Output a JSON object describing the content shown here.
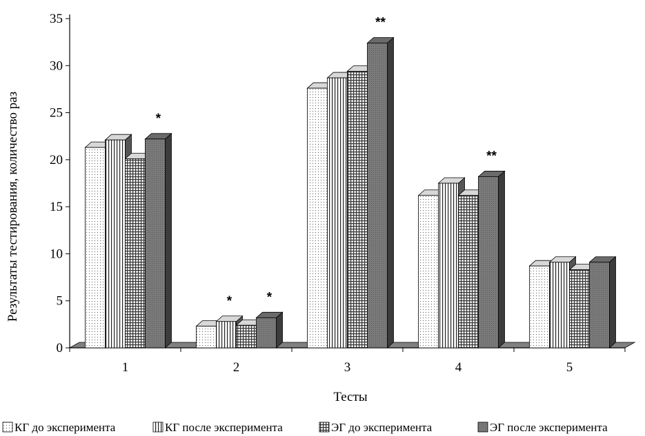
{
  "chart_data": {
    "type": "bar",
    "style": "3d-clustered-column",
    "categories": [
      "1",
      "2",
      "3",
      "4",
      "5"
    ],
    "xlabel": "Тесты",
    "ylabel": "Результаты тестирования, количество раз",
    "ylim": [
      0,
      35
    ],
    "yticks": [
      "0",
      "5",
      "10",
      "15",
      "20",
      "25",
      "30",
      "35"
    ],
    "grid": false,
    "legend_position": "bottom",
    "series": [
      {
        "name": "КГ до эксперимента",
        "pattern": "dots",
        "values": [
          21.3,
          2.3,
          27.6,
          16.2,
          8.7
        ]
      },
      {
        "name": "КГ после эксперимента",
        "pattern": "vertical-lines",
        "values": [
          22.1,
          2.8,
          28.7,
          17.5,
          9.1
        ]
      },
      {
        "name": "ЭГ до эксперимента",
        "pattern": "grid",
        "values": [
          20.1,
          2.4,
          29.4,
          16.2,
          8.3
        ]
      },
      {
        "name": "ЭГ после эксперимента",
        "pattern": "dark-fill",
        "values": [
          22.2,
          3.2,
          32.4,
          18.2,
          9.1
        ]
      }
    ],
    "annotations": [
      {
        "category": "1",
        "series": 3,
        "text": "*"
      },
      {
        "category": "2",
        "series": 1,
        "text": "*"
      },
      {
        "category": "2",
        "series": 3,
        "text": "*"
      },
      {
        "category": "3",
        "series": 3,
        "text": "**"
      },
      {
        "category": "4",
        "series": 3,
        "text": "**"
      }
    ]
  }
}
